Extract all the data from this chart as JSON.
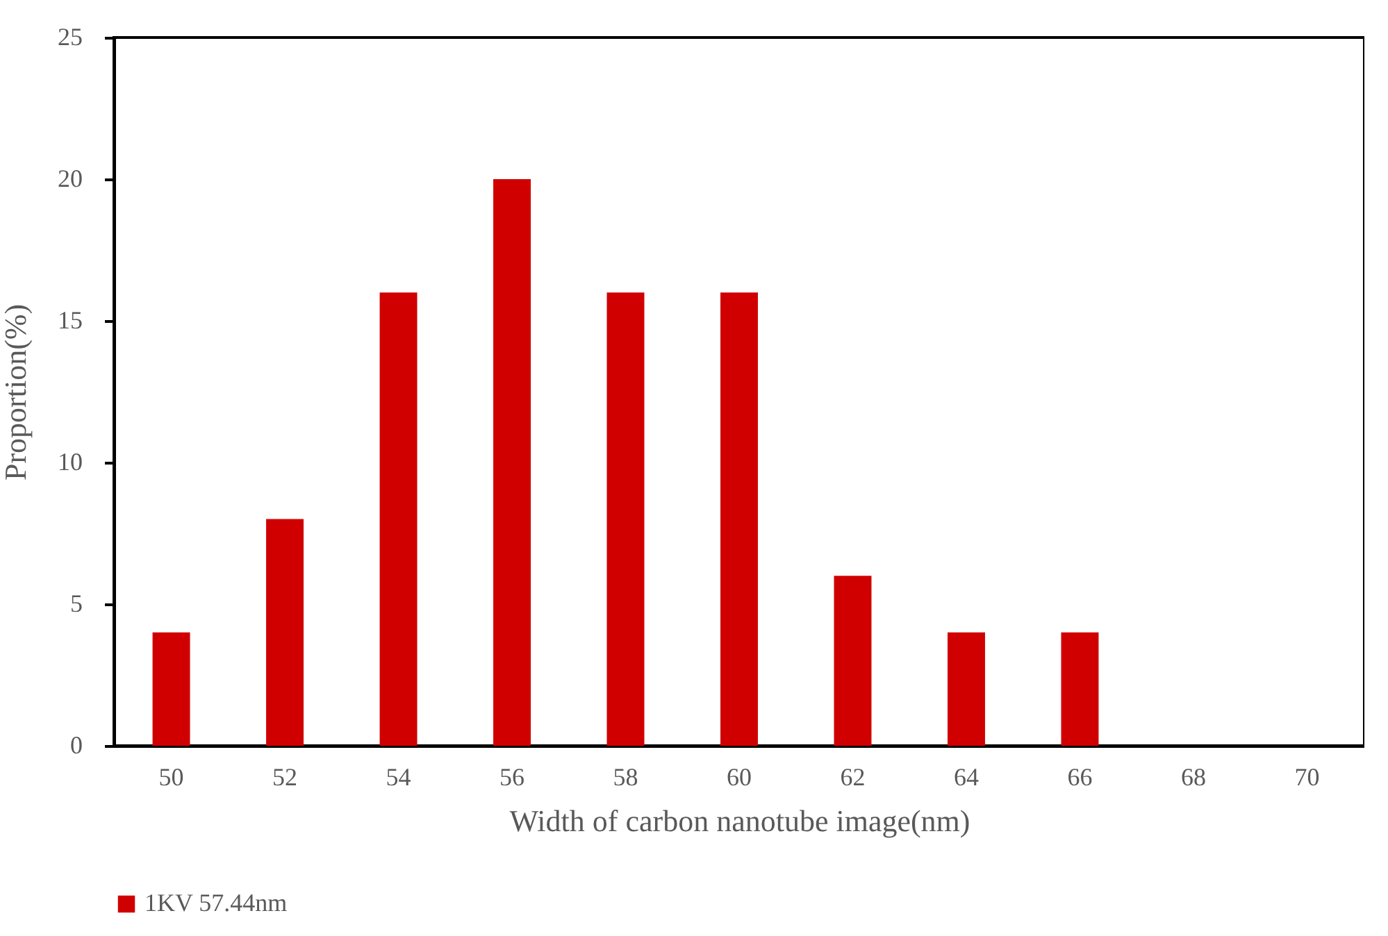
{
  "chart_data": {
    "type": "bar",
    "xlabel": "Width of carbon nanotube image(nm)",
    "ylabel": "Proportion(%)",
    "categories": [
      "50",
      "52",
      "54",
      "56",
      "58",
      "60",
      "62",
      "64",
      "66",
      "68",
      "70"
    ],
    "series": [
      {
        "name": "1KV 57.44nm",
        "color": "#d00000",
        "values": [
          4,
          8,
          16,
          20,
          16,
          16,
          6,
          4,
          4,
          0,
          0
        ]
      }
    ],
    "ylim": [
      0,
      25
    ],
    "yticks": [
      0,
      5,
      10,
      15,
      20,
      25
    ],
    "grid": false,
    "legend": "bottom"
  }
}
